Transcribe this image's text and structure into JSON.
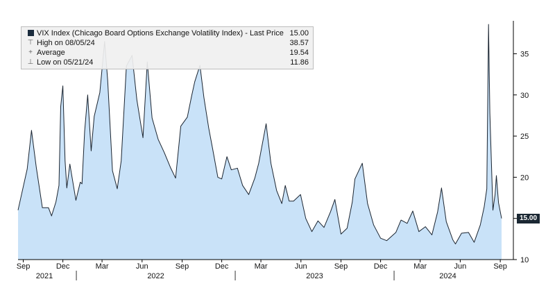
{
  "legend": {
    "series_label": "VIX Index (Chicago Board Options Exchange Volatility Index) - Last Price",
    "last_value": "15.00",
    "high_label": "High on 08/05/24",
    "high_value": "38.57",
    "avg_label": "Average",
    "avg_value": "19.54",
    "low_label": "Low on 05/21/24",
    "low_value": "11.86"
  },
  "last_price_badge": "15.00",
  "colors": {
    "fill": "#c9e2f8",
    "line": "#1a2430",
    "badge": "#1b2833"
  },
  "chart_data": {
    "type": "area",
    "ylim": [
      10,
      39
    ],
    "yticks": [
      10,
      15,
      20,
      25,
      30,
      35
    ],
    "y_axis_side": "right",
    "grid": false,
    "x_tick_labels": [
      "Sep",
      "Dec",
      "Mar",
      "Jun",
      "Sep",
      "Dec",
      "Mar",
      "Jun",
      "Sep",
      "Dec",
      "Mar",
      "Jun",
      "Sep"
    ],
    "year_labels": [
      "2021",
      "2022",
      "2023",
      "2024"
    ],
    "series": [
      {
        "values": [
          [
            "2021-08-20",
            16.0
          ],
          [
            "2021-09-10",
            21.0
          ],
          [
            "2021-09-20",
            25.7
          ],
          [
            "2021-10-01",
            21.2
          ],
          [
            "2021-10-15",
            16.3
          ],
          [
            "2021-10-29",
            16.3
          ],
          [
            "2021-11-05",
            15.3
          ],
          [
            "2021-11-15",
            17.0
          ],
          [
            "2021-11-22",
            19.0
          ],
          [
            "2021-11-26",
            28.6
          ],
          [
            "2021-12-01",
            31.1
          ],
          [
            "2021-12-06",
            22.0
          ],
          [
            "2021-12-10",
            18.7
          ],
          [
            "2021-12-17",
            21.6
          ],
          [
            "2021-12-31",
            17.2
          ],
          [
            "2022-01-10",
            19.4
          ],
          [
            "2022-01-14",
            19.2
          ],
          [
            "2022-01-20",
            25.6
          ],
          [
            "2022-01-27",
            30.0
          ],
          [
            "2022-02-04",
            23.2
          ],
          [
            "2022-02-11",
            27.4
          ],
          [
            "2022-02-24",
            30.3
          ],
          [
            "2022-03-07",
            36.5
          ],
          [
            "2022-03-14",
            31.8
          ],
          [
            "2022-03-25",
            20.8
          ],
          [
            "2022-04-05",
            18.6
          ],
          [
            "2022-04-14",
            22.0
          ],
          [
            "2022-04-26",
            33.5
          ],
          [
            "2022-05-09",
            34.8
          ],
          [
            "2022-05-20",
            29.4
          ],
          [
            "2022-06-03",
            24.8
          ],
          [
            "2022-06-13",
            34.0
          ],
          [
            "2022-06-24",
            27.2
          ],
          [
            "2022-07-08",
            24.6
          ],
          [
            "2022-07-22",
            23.0
          ],
          [
            "2022-08-05",
            21.2
          ],
          [
            "2022-08-17",
            19.9
          ],
          [
            "2022-08-29",
            26.2
          ],
          [
            "2022-09-13",
            27.3
          ],
          [
            "2022-09-23",
            29.9
          ],
          [
            "2022-09-30",
            31.6
          ],
          [
            "2022-10-12",
            33.6
          ],
          [
            "2022-10-21",
            29.7
          ],
          [
            "2022-11-01",
            26.0
          ],
          [
            "2022-11-10",
            23.5
          ],
          [
            "2022-11-22",
            20.0
          ],
          [
            "2022-12-01",
            19.8
          ],
          [
            "2022-12-13",
            22.5
          ],
          [
            "2022-12-23",
            20.9
          ],
          [
            "2023-01-06",
            21.1
          ],
          [
            "2023-01-18",
            19.0
          ],
          [
            "2023-02-01",
            17.9
          ],
          [
            "2023-02-15",
            19.9
          ],
          [
            "2023-02-24",
            21.7
          ],
          [
            "2023-03-13",
            26.5
          ],
          [
            "2023-03-24",
            21.7
          ],
          [
            "2023-04-06",
            18.4
          ],
          [
            "2023-04-18",
            16.8
          ],
          [
            "2023-04-26",
            19.0
          ],
          [
            "2023-05-05",
            17.1
          ],
          [
            "2023-05-15",
            17.1
          ],
          [
            "2023-05-31",
            17.9
          ],
          [
            "2023-06-12",
            15.0
          ],
          [
            "2023-06-26",
            13.4
          ],
          [
            "2023-07-10",
            14.7
          ],
          [
            "2023-07-24",
            13.9
          ],
          [
            "2023-08-08",
            15.8
          ],
          [
            "2023-08-18",
            17.3
          ],
          [
            "2023-09-01",
            13.1
          ],
          [
            "2023-09-15",
            13.8
          ],
          [
            "2023-09-27",
            17.0
          ],
          [
            "2023-10-03",
            19.8
          ],
          [
            "2023-10-20",
            21.7
          ],
          [
            "2023-11-01",
            16.8
          ],
          [
            "2023-11-15",
            14.2
          ],
          [
            "2023-12-01",
            12.6
          ],
          [
            "2023-12-15",
            12.3
          ],
          [
            "2024-01-05",
            13.3
          ],
          [
            "2024-01-17",
            14.8
          ],
          [
            "2024-01-31",
            14.4
          ],
          [
            "2024-02-13",
            15.9
          ],
          [
            "2024-02-27",
            13.4
          ],
          [
            "2024-03-13",
            14.0
          ],
          [
            "2024-03-28",
            13.0
          ],
          [
            "2024-04-10",
            15.8
          ],
          [
            "2024-04-19",
            18.7
          ],
          [
            "2024-04-30",
            14.6
          ],
          [
            "2024-05-15",
            12.4
          ],
          [
            "2024-05-21",
            11.9
          ],
          [
            "2024-06-04",
            13.2
          ],
          [
            "2024-06-20",
            13.3
          ],
          [
            "2024-07-03",
            12.1
          ],
          [
            "2024-07-17",
            14.2
          ],
          [
            "2024-07-26",
            16.4
          ],
          [
            "2024-08-01",
            18.6
          ],
          [
            "2024-08-05",
            38.57
          ],
          [
            "2024-08-08",
            27.8
          ],
          [
            "2024-08-15",
            16.0
          ],
          [
            "2024-08-20",
            17.9
          ],
          [
            "2024-08-23",
            20.2
          ],
          [
            "2024-08-28",
            16.9
          ],
          [
            "2024-09-04",
            15.0
          ]
        ]
      }
    ]
  }
}
